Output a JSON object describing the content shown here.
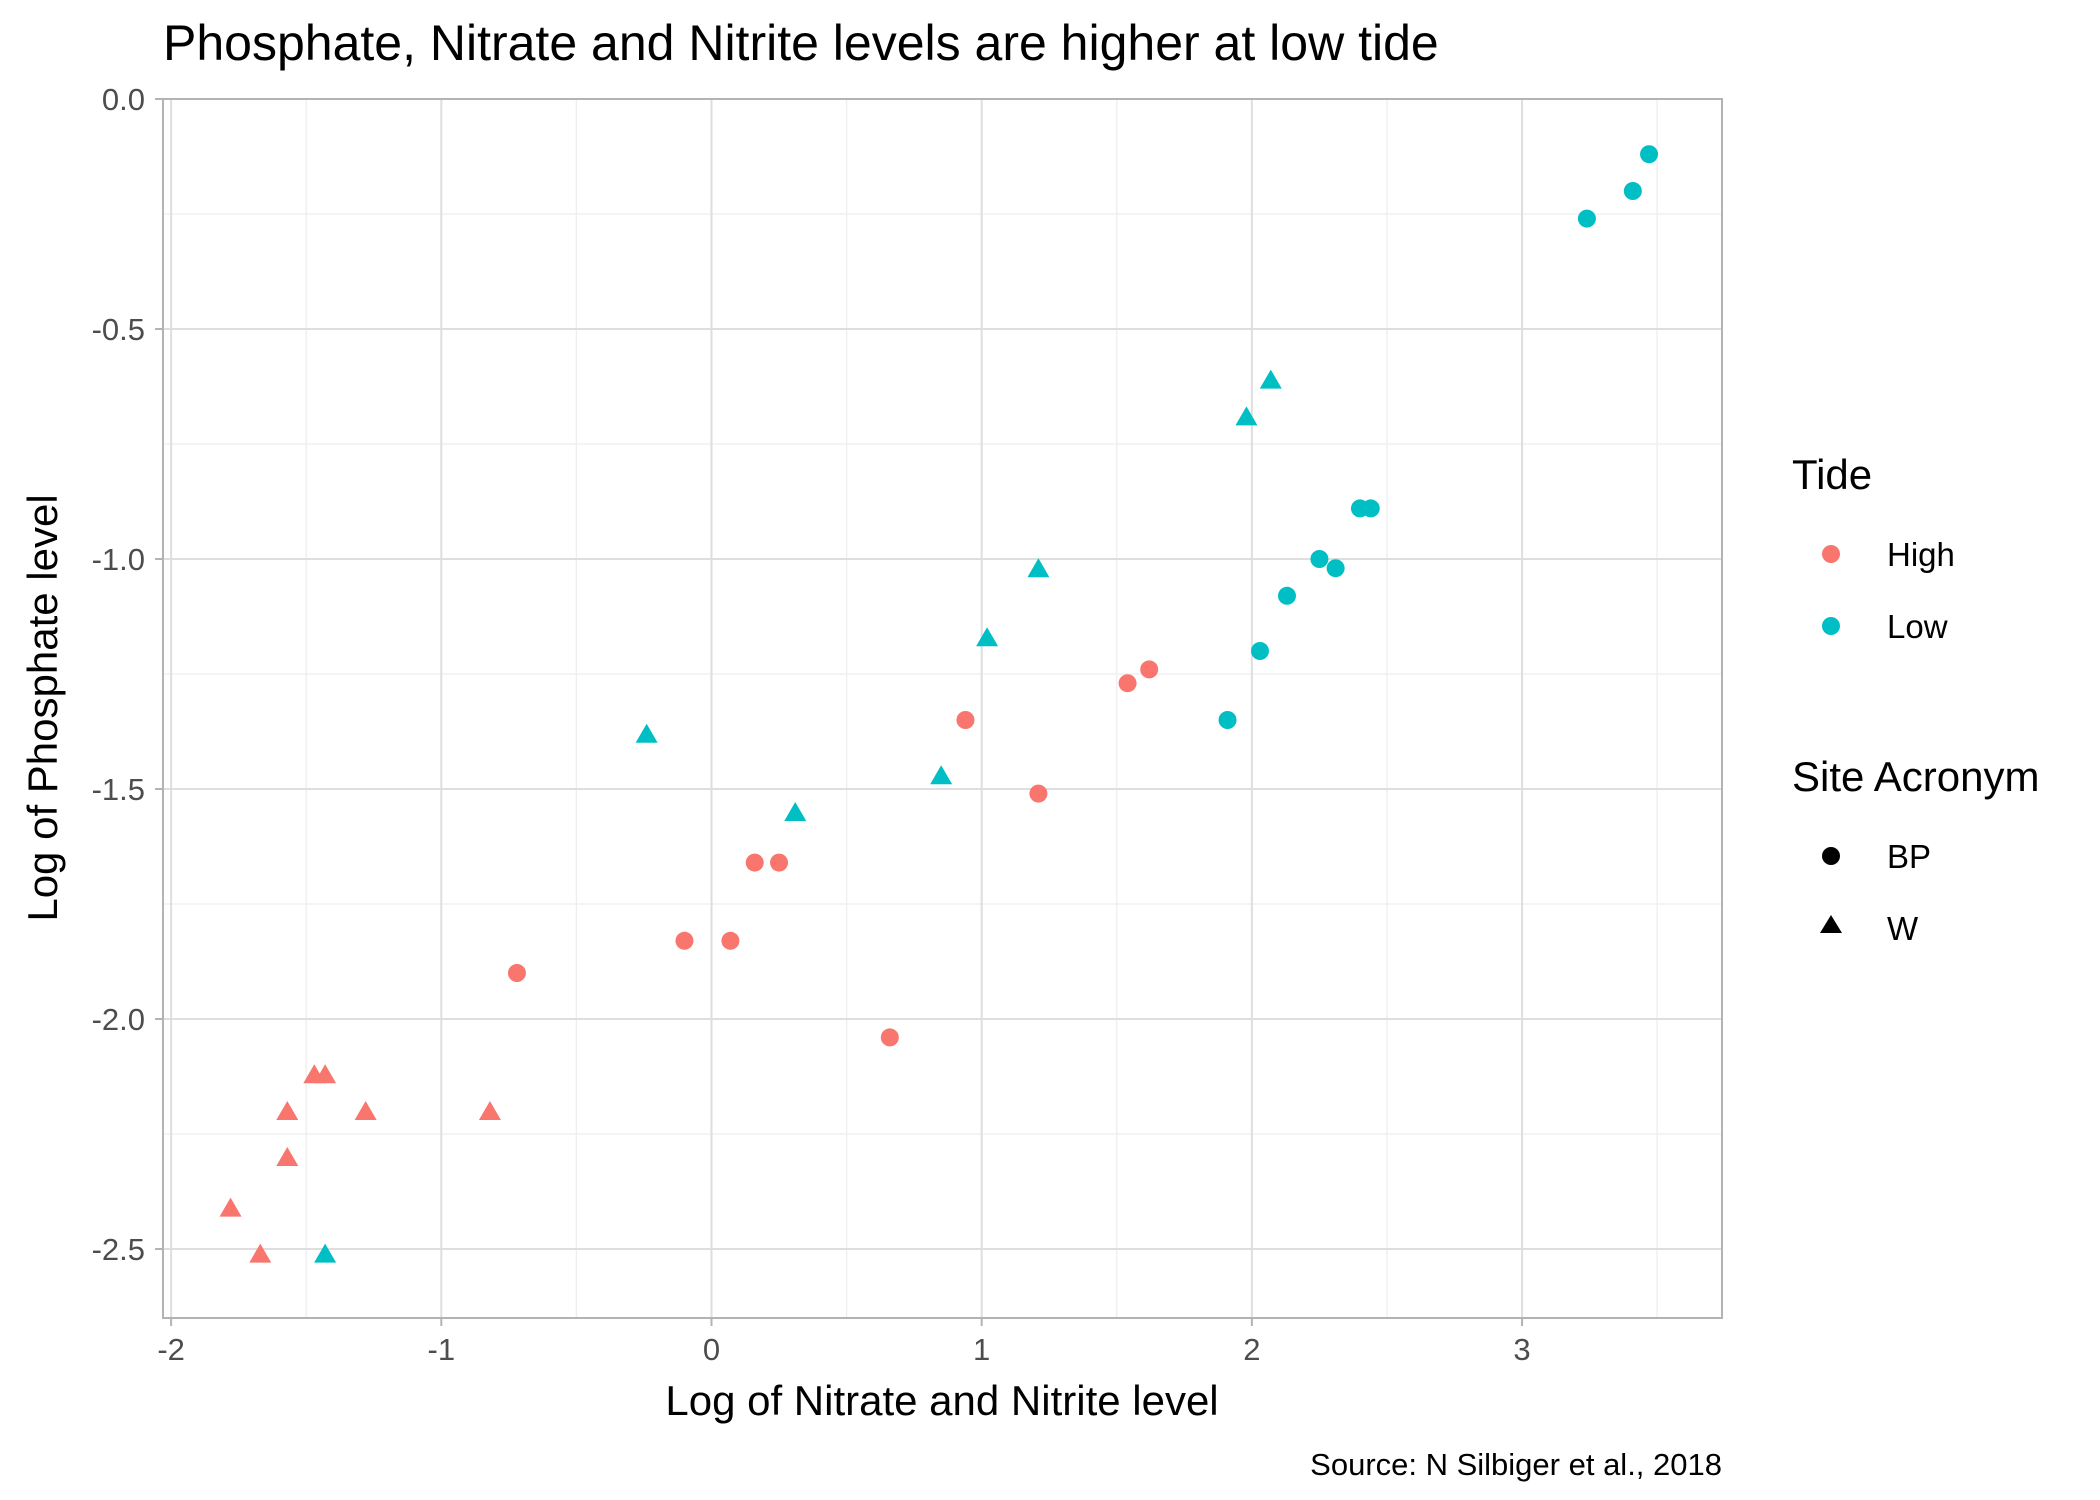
{
  "chart_data": {
    "type": "scatter",
    "title": "Phosphate, Nitrate and Nitrite levels are higher at low tide",
    "xlabel": "Log of Nitrate and Nitrite level",
    "ylabel": "Log of Phosphate level",
    "caption": "Source: N Silbiger et al., 2018",
    "xlim": [
      -2.03,
      3.74
    ],
    "ylim": [
      -2.65,
      0.0
    ],
    "x_ticks": [
      -2,
      -1,
      0,
      1,
      2,
      3
    ],
    "x_tick_labels": [
      "-2",
      "-1",
      "0",
      "1",
      "2",
      "3"
    ],
    "y_ticks": [
      0.0,
      -0.5,
      -1.0,
      -1.5,
      -2.0,
      -2.5
    ],
    "y_tick_labels": [
      "0.0",
      "-0.5",
      "-1.0",
      "-1.5",
      "-2.0",
      "-2.5"
    ],
    "grid": true,
    "legend_placement": "right",
    "legend": {
      "color_title": "Tide",
      "color_entries": [
        {
          "label": "High",
          "color": "#F8766D"
        },
        {
          "label": "Low",
          "color": "#00BFC4"
        }
      ],
      "shape_title": "Site Acronym",
      "shape_entries": [
        {
          "label": "BP",
          "shape": "circle"
        },
        {
          "label": "W",
          "shape": "triangle"
        }
      ]
    },
    "series": [
      {
        "tide": "High",
        "site": "BP",
        "color": "#F8766D",
        "shape": "circle",
        "x": [
          -0.72,
          -0.1,
          0.07,
          0.16,
          0.25,
          0.66,
          0.94,
          1.21,
          1.54,
          1.62
        ],
        "y": [
          -1.9,
          -1.83,
          -1.83,
          -1.66,
          -1.66,
          -2.04,
          -1.35,
          -1.51,
          -1.27,
          -1.24
        ]
      },
      {
        "tide": "High",
        "site": "W",
        "color": "#F8766D",
        "shape": "triangle",
        "x": [
          -1.78,
          -1.67,
          -1.57,
          -1.57,
          -1.47,
          -1.43,
          -1.28,
          -0.82
        ],
        "y": [
          -2.41,
          -2.51,
          -2.3,
          -2.2,
          -2.12,
          -2.12,
          -2.2,
          -2.2
        ]
      },
      {
        "tide": "Low",
        "site": "BP",
        "color": "#00BFC4",
        "shape": "circle",
        "x": [
          1.91,
          2.03,
          2.13,
          2.25,
          2.31,
          2.4,
          2.44,
          3.24,
          3.41,
          3.47
        ],
        "y": [
          -1.35,
          -1.2,
          -1.08,
          -1.0,
          -1.02,
          -0.89,
          -0.89,
          -0.26,
          -0.2,
          -0.12
        ]
      },
      {
        "tide": "Low",
        "site": "W",
        "color": "#00BFC4",
        "shape": "triangle",
        "x": [
          -1.43,
          -0.24,
          0.31,
          0.85,
          1.02,
          1.21,
          1.98,
          2.07
        ],
        "y": [
          -2.51,
          -1.38,
          -1.55,
          -1.47,
          -1.17,
          -1.02,
          -0.69,
          -0.61
        ]
      }
    ]
  }
}
